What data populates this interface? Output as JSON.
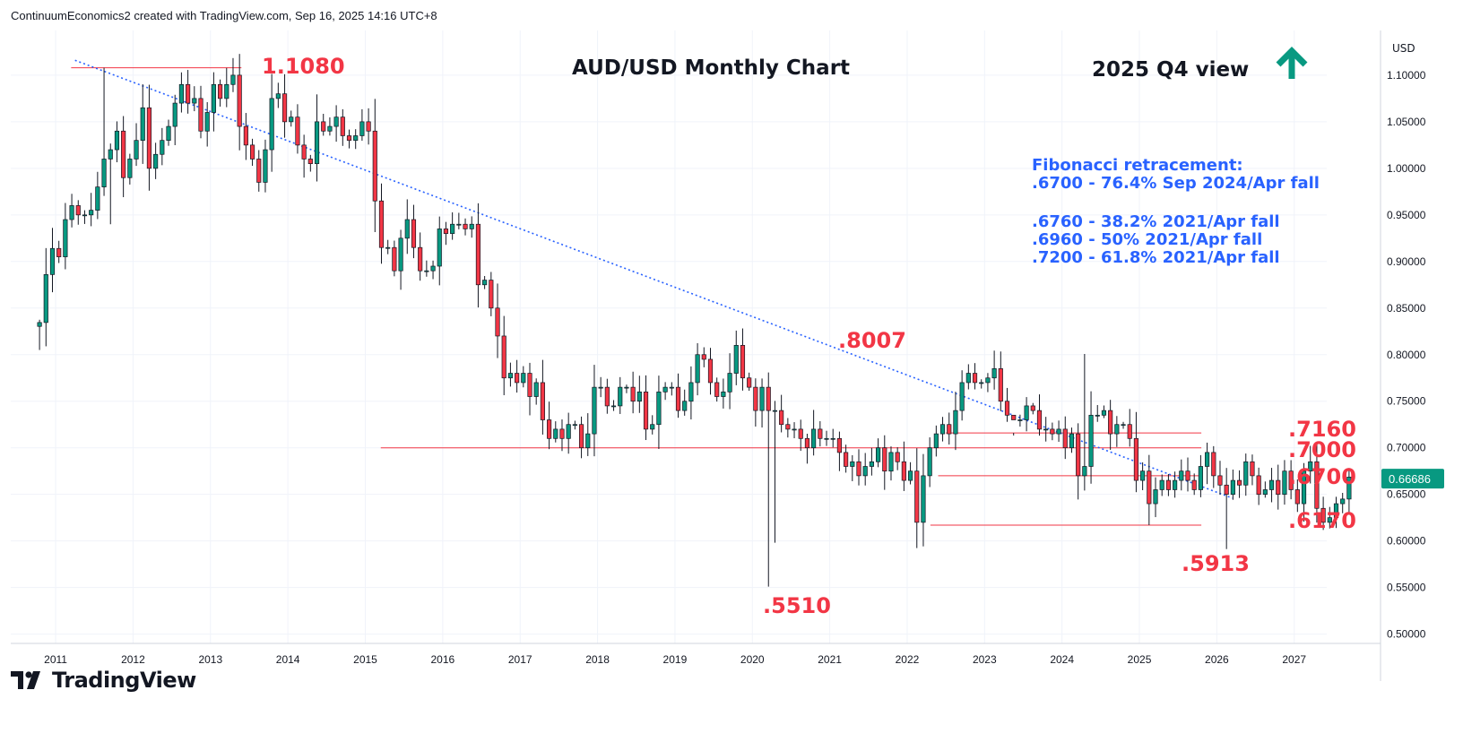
{
  "header": {
    "author": "ContinuumEconomics2",
    "platform_text": "created with TradingView.com",
    "date": "Sep 16, 2025 14:16 UTC+8"
  },
  "branding": {
    "logo_text": "TradingView"
  },
  "colors": {
    "up": "#089981",
    "down": "#f23645",
    "annotation_red": "#f23645",
    "fib_text": "#2962ff",
    "arrow": "#089981",
    "trendline": "#2962ff",
    "price_badge": "#089981"
  },
  "chart_data": {
    "type": "candlestick",
    "title": "AUD/USD Monthly Chart",
    "subtitle": "2025 Q4 view",
    "currency_label": "USD",
    "last_price": "0.66686",
    "y_ticks": [
      "1.10000",
      "1.05000",
      "1.00000",
      "0.95000",
      "0.90000",
      "0.85000",
      "0.80000",
      "0.75000",
      "0.70000",
      "0.65000",
      "0.60000",
      "0.55000",
      "0.50000"
    ],
    "x_ticks": [
      "2011",
      "2012",
      "2013",
      "2014",
      "2015",
      "2016",
      "2017",
      "2018",
      "2019",
      "2020",
      "2021",
      "2022",
      "2023",
      "2024",
      "2025",
      "2026",
      "2027"
    ],
    "fibonacci": {
      "heading": "Fibonacci retracement:",
      "lines": [
        ".6700 - 76.4% Sep 2024/Apr fall",
        ".6760 - 38.2% 2021/Apr fall",
        ".6960 - 50% 2021/Apr fall",
        ".7200 - 61.8% 2021/Apr fall"
      ]
    },
    "level_labels": [
      {
        "label": "1.1080",
        "value": 1.108
      },
      {
        "label": ".8007",
        "value": 0.8007
      },
      {
        "label": ".7160",
        "value": 0.716
      },
      {
        "label": ".7000",
        "value": 0.7
      },
      {
        "label": ".6700",
        "value": 0.67
      },
      {
        "label": ".6170",
        "value": 0.617
      },
      {
        "label": ".5510",
        "value": 0.551
      },
      {
        "label": ".5913",
        "value": 0.5913
      }
    ],
    "horizontal_levels": [
      {
        "value": 1.108,
        "from": 2011.2,
        "to": 2013.4
      },
      {
        "value": 0.7,
        "from": 2015.2,
        "to": 2025.8
      },
      {
        "value": 0.716,
        "from": 2022.5,
        "to": 2025.8
      },
      {
        "value": 0.67,
        "from": 2022.4,
        "to": 2025.8
      },
      {
        "value": 0.617,
        "from": 2022.3,
        "to": 2025.8
      }
    ],
    "trendline": {
      "from": [
        2011.25,
        1.116
      ],
      "to": [
        2026.2,
        0.646
      ]
    },
    "x_range": [
      2010.42,
      2027.42
    ],
    "y_range": [
      0.49,
      1.148
    ],
    "monthly_close": [
      0.8345,
      0.886,
      0.914,
      0.905,
      0.945,
      0.96,
      0.95,
      0.95,
      0.955,
      0.98,
      1.01,
      1.02,
      1.04,
      0.99,
      1.01,
      1.03,
      1.065,
      1.0,
      1.015,
      1.03,
      1.045,
      1.07,
      1.09,
      1.07,
      1.075,
      1.04,
      1.06,
      1.09,
      1.075,
      1.09,
      1.1,
      1.045,
      1.025,
      1.01,
      0.985,
      1.02,
      1.075,
      1.08,
      1.05,
      1.055,
      1.025,
      1.01,
      1.005,
      1.05,
      1.04,
      1.045,
      1.055,
      1.035,
      1.03,
      1.035,
      1.05,
      1.04,
      0.965,
      0.915,
      0.915,
      0.89,
      0.925,
      0.945,
      0.915,
      0.89,
      0.89,
      0.895,
      0.935,
      0.93,
      0.94,
      0.94,
      0.935,
      0.94,
      0.875,
      0.88,
      0.85,
      0.82,
      0.775,
      0.78,
      0.77,
      0.78,
      0.755,
      0.77,
      0.73,
      0.71,
      0.72,
      0.71,
      0.725,
      0.725,
      0.7,
      0.715,
      0.765,
      0.765,
      0.745,
      0.745,
      0.765,
      0.765,
      0.75,
      0.76,
      0.72,
      0.725,
      0.76,
      0.765,
      0.765,
      0.74,
      0.75,
      0.77,
      0.8,
      0.795,
      0.77,
      0.755,
      0.76,
      0.78,
      0.81,
      0.775,
      0.765,
      0.74,
      0.765,
      0.74,
      0.74,
      0.725,
      0.72,
      0.72,
      0.71,
      0.7,
      0.72,
      0.71,
      0.71,
      0.71,
      0.695,
      0.68,
      0.685,
      0.67,
      0.68,
      0.685,
      0.7,
      0.675,
      0.695,
      0.685,
      0.665,
      0.675,
      0.62,
      0.67,
      0.7,
      0.715,
      0.725,
      0.715,
      0.74,
      0.77,
      0.78,
      0.77,
      0.77,
      0.775,
      0.785,
      0.75,
      0.735,
      0.73,
      0.73,
      0.745,
      0.74,
      0.72,
      0.72,
      0.715,
      0.72,
      0.7,
      0.715,
      0.67,
      0.68,
      0.735,
      0.735,
      0.74,
      0.715,
      0.725,
      0.725,
      0.71,
      0.665,
      0.675,
      0.64,
      0.655,
      0.665,
      0.655,
      0.665,
      0.675,
      0.665,
      0.655,
      0.68,
      0.695,
      0.67,
      0.66,
      0.65,
      0.665,
      0.66,
      0.685,
      0.67,
      0.65,
      0.655,
      0.665,
      0.65,
      0.675,
      0.655,
      0.64,
      0.675,
      0.685,
      0.635,
      0.62,
      0.625,
      0.64,
      0.645,
      0.6686
    ]
  }
}
